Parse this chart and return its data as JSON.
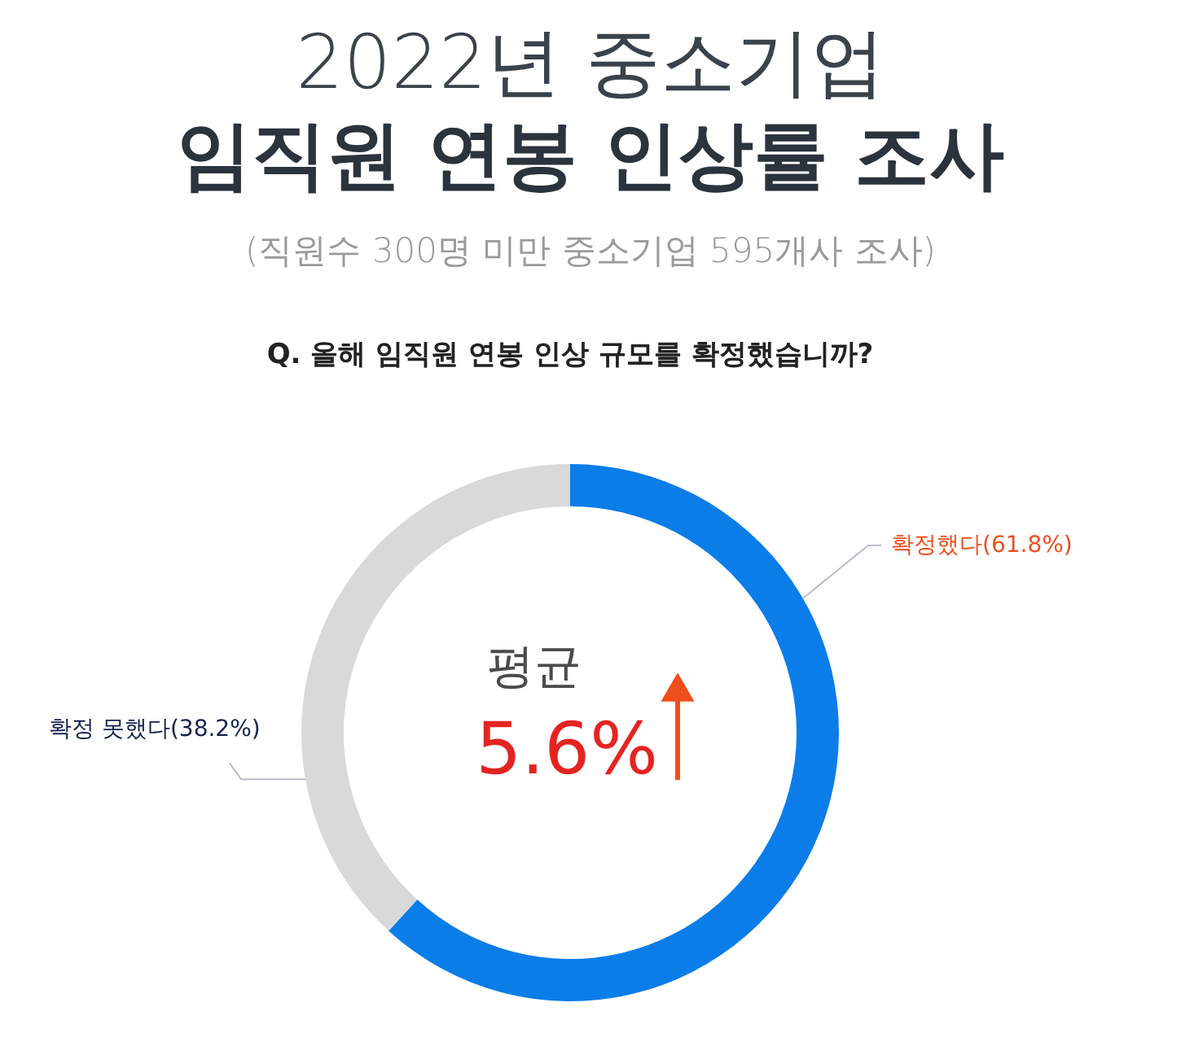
{
  "chart_data": {
    "type": "donut",
    "title": "2022년 중소기업\n임직원 연봉 인상률 조사",
    "subtitle": "(직원수 300명 미만 중소기업 595개사 조사)",
    "annotations": [
      "Q. 올해 임직원 연봉 인상 규모를 확정했습니까?",
      "평균",
      "5.6%"
    ],
    "categories": [
      "확정했다",
      "확정 못했다"
    ],
    "values": [
      61.8,
      38.2
    ],
    "colors": [
      "#0b7de9",
      "#d9d9d9"
    ],
    "value_labels": [
      "(61.8%)",
      "(38.2%)"
    ]
  }
}
